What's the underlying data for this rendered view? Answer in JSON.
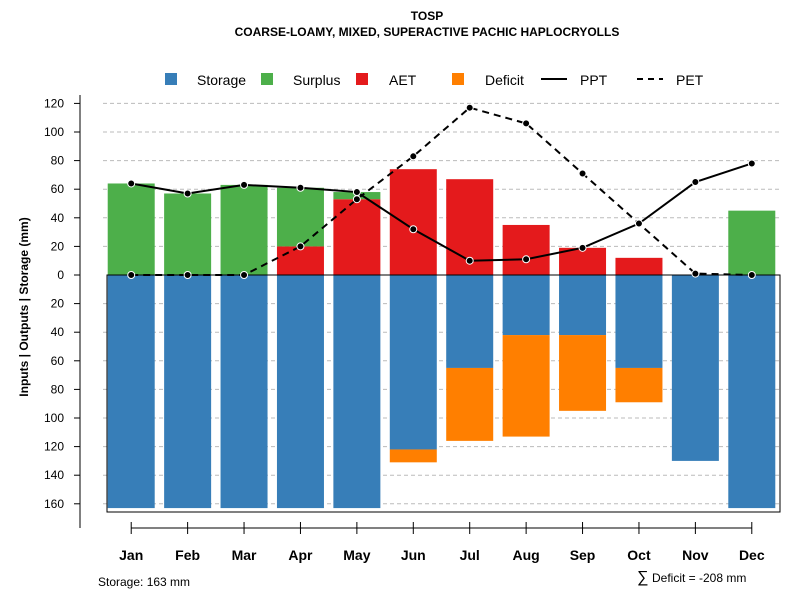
{
  "chart_data": {
    "type": "bar",
    "title": "TOSP",
    "subtitle": "COARSE-LOAMY, MIXED, SUPERACTIVE PACHIC HAPLOCRYOLLS",
    "ylabel": "Inputs | Outputs | Storage    (mm)",
    "xlabel": "",
    "ylim": [
      -163,
      120
    ],
    "y_ticks": [
      120,
      100,
      80,
      60,
      40,
      20,
      0,
      -20,
      -40,
      -60,
      -80,
      -100,
      -120,
      -140,
      -160
    ],
    "y_tick_labels": [
      "120",
      "100",
      "80",
      "60",
      "40",
      "20",
      "0",
      "20",
      "40",
      "60",
      "80",
      "100",
      "120",
      "140",
      "160"
    ],
    "grid": true,
    "legend_position": "top",
    "categories": [
      "Jan",
      "Feb",
      "Mar",
      "Apr",
      "May",
      "Jun",
      "Jul",
      "Aug",
      "Sep",
      "Oct",
      "Nov",
      "Dec"
    ],
    "bar_series": [
      {
        "name": "Storage",
        "color": "#377EB8",
        "values": [
          -163,
          -163,
          -163,
          -163,
          -163,
          -122,
          -65,
          -42,
          -42,
          -65,
          -130,
          -163
        ]
      },
      {
        "name": "Surplus",
        "color": "#4DAF4A",
        "values": [
          64,
          57,
          63,
          41,
          5,
          0,
          0,
          0,
          0,
          0,
          0,
          45
        ]
      },
      {
        "name": "AET",
        "color": "#E41A1C",
        "values": [
          0,
          0,
          0,
          20,
          53,
          74,
          67,
          35,
          19,
          12,
          0,
          0
        ]
      },
      {
        "name": "Deficit",
        "color": "#FF7F00",
        "values": [
          0,
          0,
          0,
          0,
          0,
          -9,
          -51,
          -71,
          -53,
          -24,
          0,
          0
        ]
      }
    ],
    "line_series": [
      {
        "name": "PPT",
        "dash": "solid",
        "values": [
          64,
          57,
          63,
          61,
          58,
          32,
          10,
          11,
          19,
          36,
          65,
          78
        ]
      },
      {
        "name": "PET",
        "dash": "dashed",
        "values": [
          0,
          0,
          0,
          20,
          53,
          83,
          117,
          106,
          71,
          36,
          1,
          0
        ]
      }
    ],
    "annotations": {
      "storage": "Storage: 163 mm",
      "deficit_symbol": "∑",
      "deficit": "Deficit = -208 mm"
    }
  }
}
